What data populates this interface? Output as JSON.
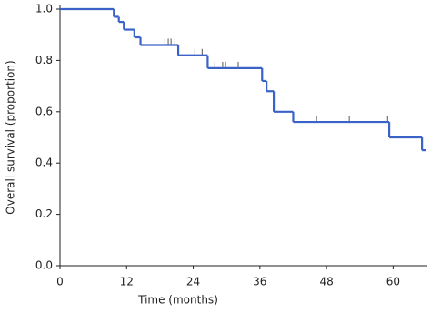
{
  "chart_data": {
    "type": "step",
    "xlabel": "Time (months)",
    "ylabel": "Overall survival (proportion)",
    "x": [
      0,
      9.7,
      10.6,
      11.5,
      13.4,
      14.5,
      21.3,
      26.6,
      36.4,
      37.2,
      38.5,
      42.0,
      59.3,
      65.2
    ],
    "values": [
      1.0,
      0.97,
      0.95,
      0.92,
      0.89,
      0.86,
      0.82,
      0.77,
      0.72,
      0.68,
      0.6,
      0.56,
      0.5,
      0.45
    ],
    "color": "#3b62c8",
    "censored": {
      "x": [
        18.9,
        19.5,
        20.0,
        20.7,
        24.3,
        25.6,
        27.9,
        29.3,
        29.8,
        32.1,
        46.2,
        51.5,
        52.1,
        59.0
      ],
      "values": [
        0.86,
        0.86,
        0.86,
        0.86,
        0.82,
        0.82,
        0.77,
        0.77,
        0.77,
        0.77,
        0.56,
        0.56,
        0.56,
        0.56
      ],
      "color": "#555555"
    },
    "xlim": [
      0,
      66
    ],
    "xticks": [
      0,
      12,
      24,
      36,
      48,
      60
    ],
    "ylim": [
      0,
      1
    ],
    "yticks": [
      {
        "value": 0,
        "label": "0.0"
      },
      {
        "value": 0.2,
        "label": "0.2"
      },
      {
        "value": 0.4,
        "label": "0.4"
      },
      {
        "value": 0.6,
        "label": "0.6"
      },
      {
        "value": 0.8,
        "label": "0.8"
      },
      {
        "value": 1,
        "label": "1.0"
      }
    ]
  }
}
